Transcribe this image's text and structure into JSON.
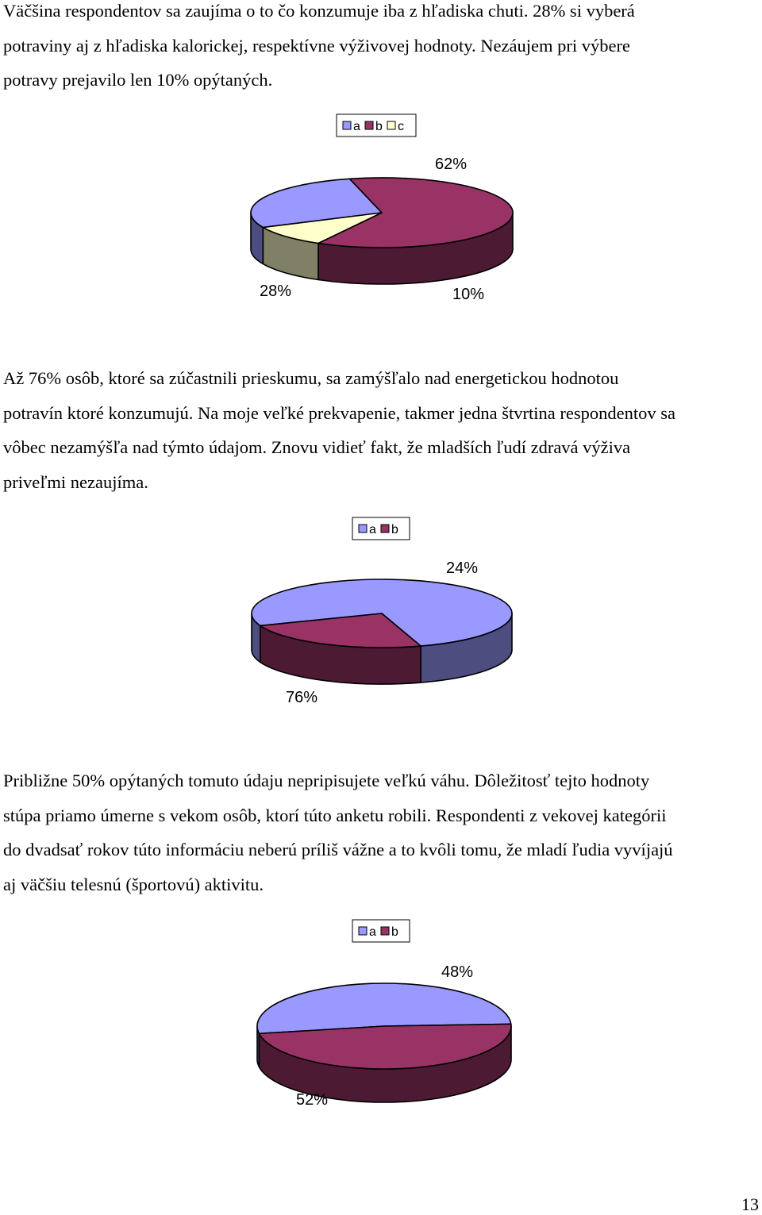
{
  "paragraphs": [
    {
      "lines": [
        "Väčšina respondentov sa zaujíma o to čo konzumuje iba z hľadiska chuti. 28% si vyberá",
        "potraviny aj z hľadiska kalorickej, respektívne výživovej hodnoty. Nezáujem pri výbere",
        "potravy prejavilo len 10% opýtaných."
      ]
    },
    {
      "lines": [
        "Až 76% osôb, ktoré sa zúčastnili prieskumu, sa zamýšľalo nad energetickou hodnotou",
        "potravín ktoré konzumujú. Na moje veľké prekvapenie, takmer jedna štvrtina respondentov sa",
        "vôbec nezamýšľa nad týmto údajom. Znovu vidieť fakt, že mladších ľudí zdravá výživa",
        "priveľmi nezaujíma."
      ]
    },
    {
      "lines": [
        "Približne 50% opýtaných tomuto údaju nepripisujete veľkú váhu. Dôležitosť tejto hodnoty",
        "stúpa priamo úmerne s vekom osôb, ktorí túto anketu robili. Respondenti z vekovej kategórii",
        "do dvadsať rokov túto informáciu neberú príliš vážne a to kvôli tomu, že mladí ľudia vyvíjajú",
        "aj väčšiu telesnú (športovú) aktivitu."
      ]
    }
  ],
  "chart_data": [
    {
      "type": "pie",
      "categories": [
        "a",
        "b",
        "c"
      ],
      "values": [
        28,
        62,
        10
      ],
      "data_labels": [
        "28%",
        "62%",
        "10%"
      ],
      "legend": "top",
      "colors": [
        "#9999ff",
        "#993366",
        "#ffffcc"
      ]
    },
    {
      "type": "pie",
      "categories": [
        "a",
        "b"
      ],
      "values": [
        76,
        24
      ],
      "data_labels": [
        "76%",
        "24%"
      ],
      "legend": "top",
      "colors": [
        "#9999ff",
        "#993366"
      ]
    },
    {
      "type": "pie",
      "categories": [
        "a",
        "b"
      ],
      "values": [
        52,
        48
      ],
      "data_labels": [
        "52%",
        "48%"
      ],
      "legend": "top",
      "colors": [
        "#9999ff",
        "#993366"
      ]
    }
  ],
  "page_number": "13"
}
